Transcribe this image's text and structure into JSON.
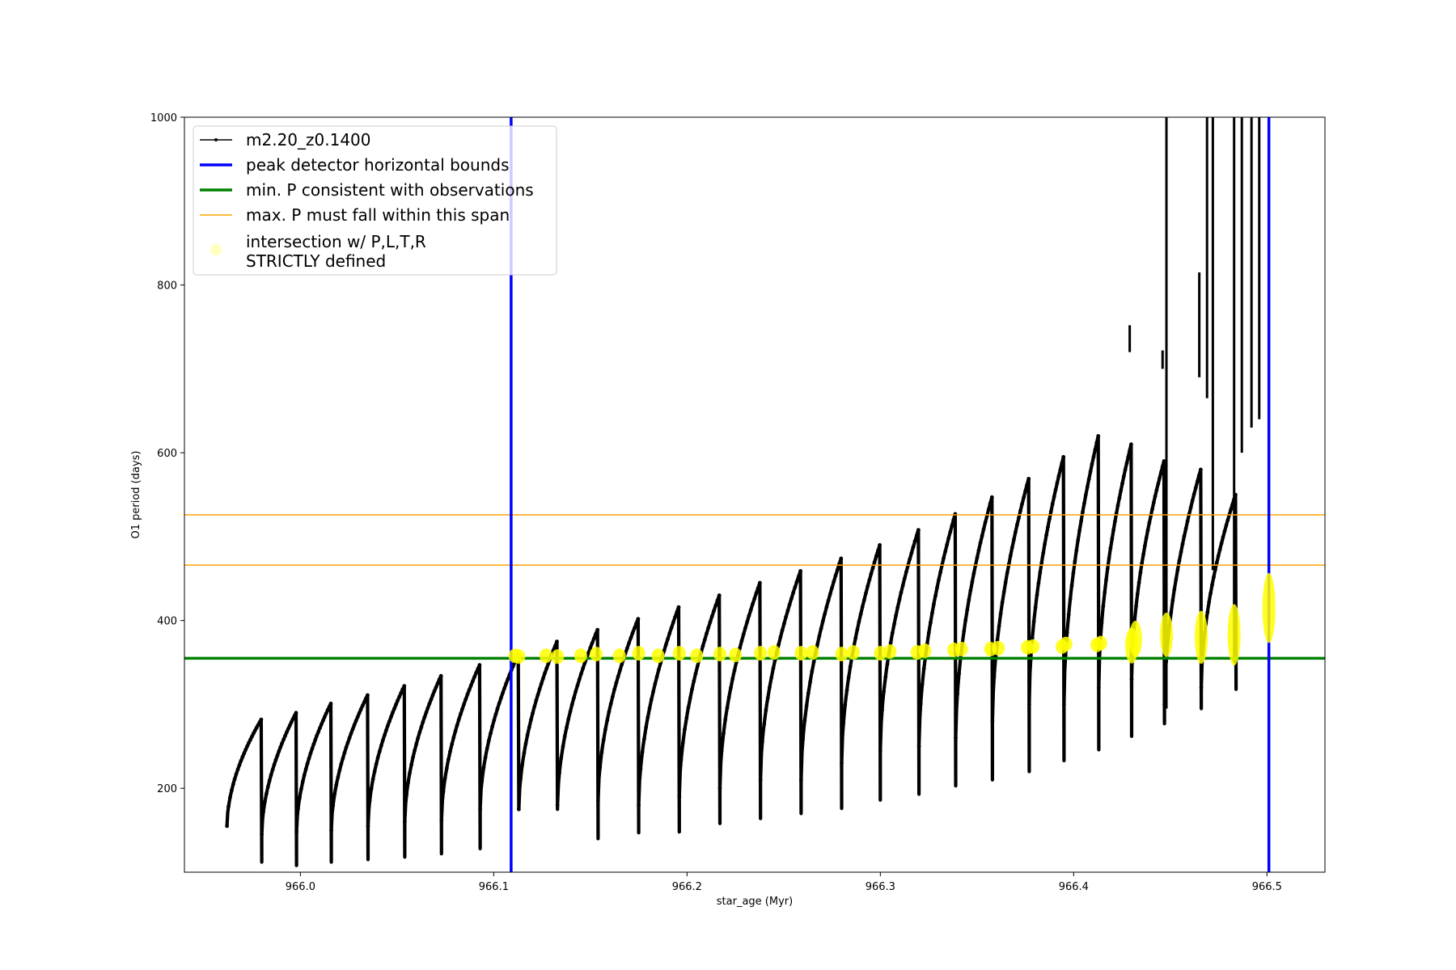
{
  "chart_data": {
    "type": "line",
    "title": "",
    "xlabel": "star_age (Myr)",
    "ylabel": "O1 period (days)",
    "xlim": [
      965.94,
      966.53
    ],
    "ylim": [
      100,
      1000
    ],
    "xticks": [
      966.0,
      966.1,
      966.2,
      966.3,
      966.4,
      966.5
    ],
    "xtick_labels": [
      "966.0",
      "966.1",
      "966.2",
      "966.3",
      "966.4",
      "966.5"
    ],
    "yticks": [
      200,
      400,
      600,
      800,
      1000
    ],
    "ytick_labels": [
      "200",
      "400",
      "600",
      "800",
      "1000"
    ],
    "grid": false,
    "legend_position": "top-left",
    "pulse_cycles": [
      {
        "start": 965.962,
        "end": 965.98,
        "min": 155,
        "max": 282,
        "low": 112
      },
      {
        "start": 965.98,
        "end": 965.998,
        "min": 145,
        "max": 290,
        "low": 108
      },
      {
        "start": 965.998,
        "end": 966.016,
        "min": 148,
        "max": 301,
        "low": 112
      },
      {
        "start": 966.016,
        "end": 966.035,
        "min": 150,
        "max": 311,
        "low": 115
      },
      {
        "start": 966.035,
        "end": 966.054,
        "min": 155,
        "max": 322,
        "low": 118
      },
      {
        "start": 966.054,
        "end": 966.073,
        "min": 160,
        "max": 334,
        "low": 122
      },
      {
        "start": 966.073,
        "end": 966.093,
        "min": 162,
        "max": 347,
        "low": 128
      },
      {
        "start": 966.093,
        "end": 966.113,
        "min": 175,
        "max": 360,
        "low": 175
      },
      {
        "start": 966.113,
        "end": 966.133,
        "min": 175,
        "max": 375,
        "low": 175
      },
      {
        "start": 966.133,
        "end": 966.154,
        "min": 180,
        "max": 389,
        "low": 140
      },
      {
        "start": 966.154,
        "end": 966.175,
        "min": 185,
        "max": 402,
        "low": 147
      },
      {
        "start": 966.175,
        "end": 966.196,
        "min": 180,
        "max": 416,
        "low": 148
      },
      {
        "start": 966.196,
        "end": 966.217,
        "min": 190,
        "max": 430,
        "low": 158
      },
      {
        "start": 966.217,
        "end": 966.238,
        "min": 200,
        "max": 445,
        "low": 164
      },
      {
        "start": 966.238,
        "end": 966.259,
        "min": 210,
        "max": 459,
        "low": 170
      },
      {
        "start": 966.259,
        "end": 966.28,
        "min": 210,
        "max": 474,
        "low": 176
      },
      {
        "start": 966.28,
        "end": 966.3,
        "min": 230,
        "max": 490,
        "low": 186
      },
      {
        "start": 966.3,
        "end": 966.32,
        "min": 245,
        "max": 508,
        "low": 193
      },
      {
        "start": 966.32,
        "end": 966.339,
        "min": 250,
        "max": 527,
        "low": 203
      },
      {
        "start": 966.339,
        "end": 966.358,
        "min": 260,
        "max": 547,
        "low": 210
      },
      {
        "start": 966.358,
        "end": 966.377,
        "min": 280,
        "max": 569,
        "low": 220
      },
      {
        "start": 966.377,
        "end": 966.395,
        "min": 300,
        "max": 595,
        "low": 233
      },
      {
        "start": 966.395,
        "end": 966.413,
        "min": 300,
        "max": 620,
        "low": 246
      },
      {
        "start": 966.413,
        "end": 966.43,
        "min": 320,
        "max": 610,
        "low": 262
      },
      {
        "start": 966.43,
        "end": 966.447,
        "min": 330,
        "max": 590,
        "low": 277
      },
      {
        "start": 966.447,
        "end": 966.466,
        "min": 300,
        "max": 580,
        "low": 295
      },
      {
        "start": 966.466,
        "end": 966.484,
        "min": 320,
        "max": 550,
        "low": 318
      }
    ],
    "late_spikes": [
      {
        "x": 966.429,
        "ymin": 720,
        "ymax": 752
      },
      {
        "x": 966.446,
        "ymin": 700,
        "ymax": 722
      },
      {
        "x": 966.448,
        "ymin": 295,
        "ymax": 1000
      },
      {
        "x": 966.465,
        "ymin": 690,
        "ymax": 815
      },
      {
        "x": 966.469,
        "ymin": 665,
        "ymax": 1000
      },
      {
        "x": 966.472,
        "ymin": 460,
        "ymax": 1000
      },
      {
        "x": 966.483,
        "ymin": 350,
        "ymax": 1000
      },
      {
        "x": 966.487,
        "ymin": 600,
        "ymax": 1000
      },
      {
        "x": 966.492,
        "ymin": 630,
        "ymax": 1000
      },
      {
        "x": 966.496,
        "ymin": 640,
        "ymax": 1000
      }
    ],
    "peak_detector_bounds": [
      966.109,
      966.501
    ],
    "min_period": 355,
    "max_period_span": [
      466,
      526
    ],
    "intersections": [
      {
        "x": 966.111,
        "y": 358
      },
      {
        "x": 966.113,
        "y": 357
      },
      {
        "x": 966.127,
        "y": 358
      },
      {
        "x": 966.133,
        "y": 357
      },
      {
        "x": 966.145,
        "y": 358
      },
      {
        "x": 966.153,
        "y": 360
      },
      {
        "x": 966.165,
        "y": 358
      },
      {
        "x": 966.175,
        "y": 361
      },
      {
        "x": 966.185,
        "y": 358
      },
      {
        "x": 966.196,
        "y": 361
      },
      {
        "x": 966.205,
        "y": 358
      },
      {
        "x": 966.217,
        "y": 360
      },
      {
        "x": 966.225,
        "y": 359
      },
      {
        "x": 966.238,
        "y": 361
      },
      {
        "x": 966.245,
        "y": 362
      },
      {
        "x": 966.259,
        "y": 361
      },
      {
        "x": 966.265,
        "y": 362
      },
      {
        "x": 966.28,
        "y": 360
      },
      {
        "x": 966.286,
        "y": 362
      },
      {
        "x": 966.3,
        "y": 361
      },
      {
        "x": 966.305,
        "y": 363
      },
      {
        "x": 966.319,
        "y": 362
      },
      {
        "x": 966.323,
        "y": 364
      },
      {
        "x": 966.338,
        "y": 365
      },
      {
        "x": 966.342,
        "y": 366
      },
      {
        "x": 966.357,
        "y": 366
      },
      {
        "x": 966.361,
        "y": 367
      },
      {
        "x": 966.376,
        "y": 368
      },
      {
        "x": 966.379,
        "y": 369
      },
      {
        "x": 966.394,
        "y": 369
      },
      {
        "x": 966.396,
        "y": 372
      },
      {
        "x": 966.412,
        "y": 371
      },
      {
        "x": 966.414,
        "y": 373
      },
      {
        "x": 966.43,
        "y": 370
      },
      {
        "x": 966.432,
        "y": 378
      },
      {
        "x": 966.448,
        "y": 383
      },
      {
        "x": 966.466,
        "y": 380
      },
      {
        "x": 966.483,
        "y": 383
      },
      {
        "x": 966.501,
        "y": 415
      }
    ],
    "series": [
      {
        "name": "m2.20_z0.1400",
        "color": "#000000",
        "kind": "line-with-markers"
      },
      {
        "name": "peak detector horizontal bounds",
        "color": "#0000ff",
        "kind": "vline"
      },
      {
        "name": "min. P consistent with observations",
        "color": "#008000",
        "kind": "hline"
      },
      {
        "name": "max. P must fall within this span",
        "color": "#ffa500",
        "kind": "hline"
      },
      {
        "name": "intersection w/ P,L,T,R\nSTRICTLY defined",
        "color": "#ffff00",
        "kind": "scatter"
      }
    ]
  }
}
